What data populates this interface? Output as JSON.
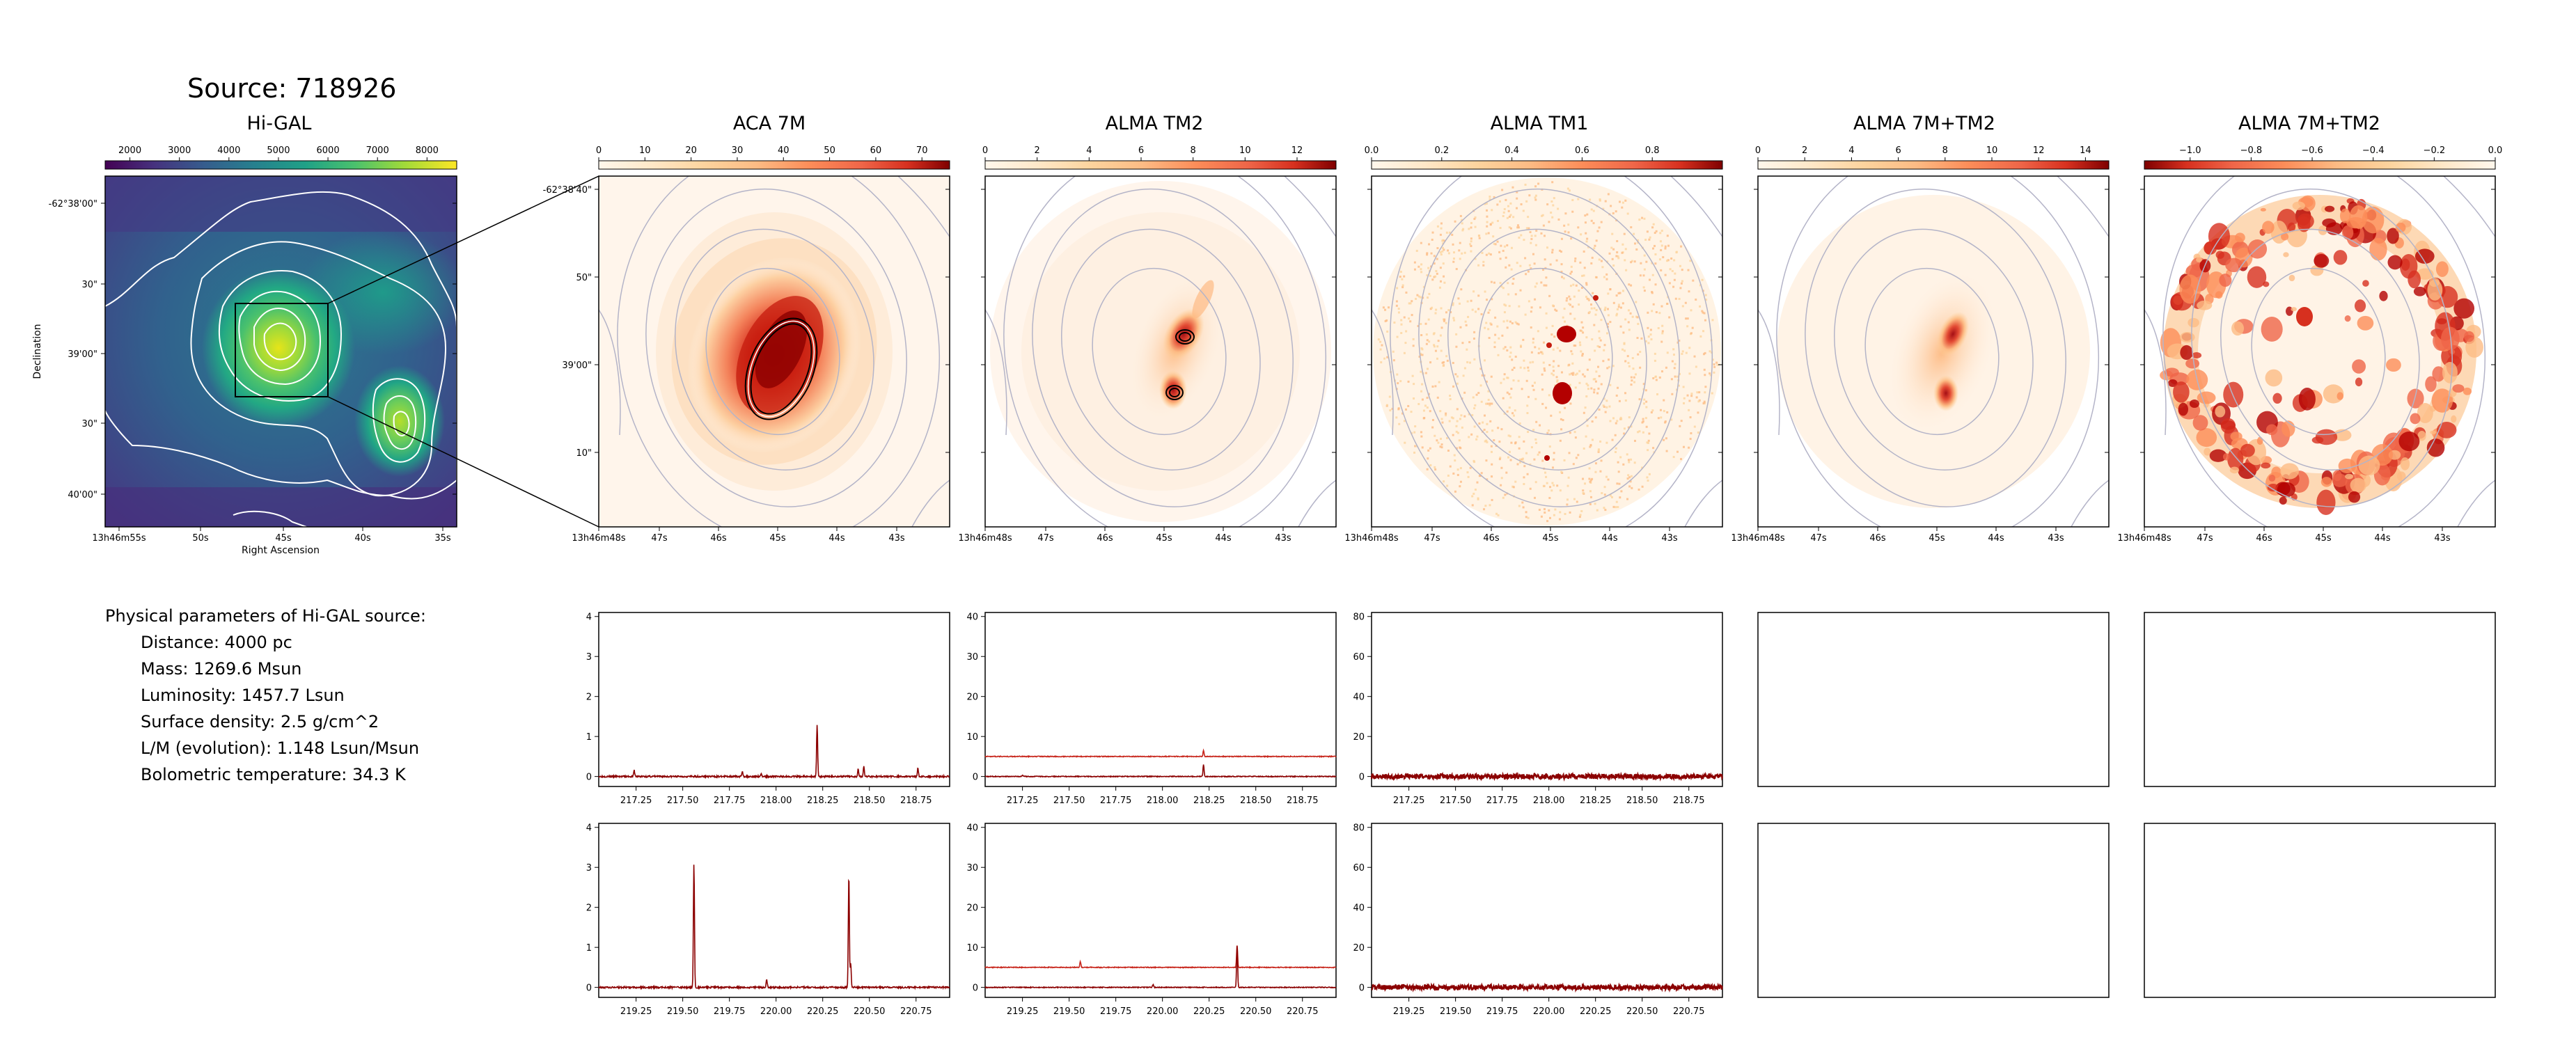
{
  "source_title": "Source: 718926",
  "physical": {
    "heading": "Physical parameters of Hi-GAL source:",
    "items": [
      "Distance: 4000 pc",
      "Mass: 1269.6 Msun",
      "Luminosity: 1457.7 Lsun",
      "Surface density: 2.5 g/cm^2",
      "L/M (evolution): 1.148 Lsun/Msun",
      "Bolometric temperature: 34.3 K"
    ]
  },
  "higal": {
    "title": "Hi-GAL",
    "colormap": "viridis",
    "colorbar_ticks": [
      "2000",
      "3000",
      "4000",
      "5000",
      "6000",
      "7000",
      "8000"
    ],
    "colorbar_range": [
      1500,
      8600
    ],
    "dec_ticks": [
      "-62°38'00\"",
      "30\"",
      "39'00\"",
      "30\"",
      "40'00\""
    ],
    "ra_ticks": [
      "13h46m55s",
      "50s",
      "45s",
      "40s",
      "35s"
    ],
    "xlabel": "Right Ascension",
    "ylabel": "Declination",
    "contour_color": "#ffffff"
  },
  "zoom_panels": [
    {
      "id": "aca7m",
      "title": "ACA 7M",
      "colorbar_ticks": [
        "0",
        "10",
        "20",
        "30",
        "40",
        "50",
        "60",
        "70"
      ],
      "colorbar_range": [
        0,
        76
      ],
      "colormap": "OrRd"
    },
    {
      "id": "tm2",
      "title": "ALMA TM2",
      "colorbar_ticks": [
        "0",
        "2",
        "4",
        "6",
        "8",
        "10",
        "12"
      ],
      "colorbar_range": [
        0,
        13.5
      ],
      "colormap": "OrRd"
    },
    {
      "id": "tm1",
      "title": "ALMA TM1",
      "colorbar_ticks": [
        "0.0",
        "0.2",
        "0.4",
        "0.6",
        "0.8"
      ],
      "colorbar_range": [
        0,
        1.0
      ],
      "colormap": "OrRd"
    },
    {
      "id": "7mtm2",
      "title": "ALMA 7M+TM2",
      "colorbar_ticks": [
        "0",
        "2",
        "4",
        "6",
        "8",
        "10",
        "12",
        "14"
      ],
      "colorbar_range": [
        0,
        15
      ],
      "colormap": "OrRd"
    },
    {
      "id": "7mtm2b",
      "title": "ALMA 7M+TM2",
      "colorbar_ticks": [
        "−1.0",
        "−0.8",
        "−0.6",
        "−0.4",
        "−0.2",
        "0.0"
      ],
      "colorbar_range": [
        -1.15,
        0
      ],
      "colormap": "OrRd_r"
    }
  ],
  "zoom_axes": {
    "dec_ticks": [
      "-62°38'40\"",
      "50\"",
      "39'00\"",
      "10\""
    ],
    "ra_ticks": [
      "13h46m48s",
      "47s",
      "46s",
      "45s",
      "44s",
      "43s"
    ],
    "contour_color": "#b4b4c8"
  },
  "chart_data": [
    {
      "type": "line",
      "panel": "spectrum-aca7m-row1",
      "xlim": [
        217.05,
        218.93
      ],
      "ylim": [
        -0.25,
        4.1
      ],
      "x_ticks": [
        "217.25",
        "217.50",
        "217.75",
        "218.00",
        "218.25",
        "218.50",
        "218.75"
      ],
      "y_ticks": [
        "0",
        "1",
        "2",
        "3",
        "4"
      ],
      "series": [
        {
          "baseline": 0,
          "noise": 0.02,
          "peaks": [
            [
              217.24,
              0.15
            ],
            [
              217.82,
              0.12
            ],
            [
              217.92,
              0.08
            ],
            [
              218.22,
              1.3
            ],
            [
              218.44,
              0.2
            ],
            [
              218.47,
              0.25
            ],
            [
              218.76,
              0.22
            ]
          ]
        }
      ]
    },
    {
      "type": "line",
      "panel": "spectrum-tm2-row1",
      "xlim": [
        217.05,
        218.93
      ],
      "ylim": [
        -2.5,
        41
      ],
      "x_ticks": [
        "217.25",
        "217.50",
        "217.75",
        "218.00",
        "218.25",
        "218.50",
        "218.75"
      ],
      "y_ticks": [
        "0",
        "10",
        "20",
        "30",
        "40"
      ],
      "series": [
        {
          "baseline": 5,
          "noise": 0.1,
          "peaks": [
            [
              218.22,
              1.5
            ]
          ]
        },
        {
          "baseline": 0,
          "noise": 0.1,
          "peaks": [
            [
              217.25,
              0.3
            ],
            [
              218.22,
              3
            ]
          ]
        }
      ]
    },
    {
      "type": "line",
      "panel": "spectrum-tm1-row1",
      "xlim": [
        217.05,
        218.93
      ],
      "ylim": [
        -5,
        82
      ],
      "x_ticks": [
        "217.25",
        "217.50",
        "217.75",
        "218.00",
        "218.25",
        "218.50",
        "218.75"
      ],
      "y_ticks": [
        "0",
        "20",
        "40",
        "60",
        "80"
      ],
      "series": [
        {
          "baseline": 0,
          "noise": 1.2,
          "peaks": []
        }
      ]
    },
    {
      "type": "line",
      "panel": "spectrum-aca7m-row2",
      "xlim": [
        219.05,
        220.93
      ],
      "ylim": [
        -0.25,
        4.1
      ],
      "x_ticks": [
        "219.25",
        "219.50",
        "219.75",
        "220.00",
        "220.25",
        "220.50",
        "220.75"
      ],
      "y_ticks": [
        "0",
        "1",
        "2",
        "3",
        "4"
      ],
      "series": [
        {
          "baseline": 0,
          "noise": 0.02,
          "peaks": [
            [
              219.56,
              3.1
            ],
            [
              219.95,
              0.2
            ],
            [
              220.39,
              2.85
            ],
            [
              220.4,
              0.6
            ]
          ]
        }
      ]
    },
    {
      "type": "line",
      "panel": "spectrum-tm2-row2",
      "xlim": [
        219.05,
        220.93
      ],
      "ylim": [
        -2.5,
        41
      ],
      "x_ticks": [
        "219.25",
        "219.50",
        "219.75",
        "220.00",
        "220.25",
        "220.50",
        "220.75"
      ],
      "y_ticks": [
        "0",
        "10",
        "20",
        "30",
        "40"
      ],
      "series": [
        {
          "baseline": 5,
          "noise": 0.1,
          "peaks": [
            [
              219.56,
              1.5
            ],
            [
              220.4,
              5.5
            ]
          ]
        },
        {
          "baseline": 0,
          "noise": 0.1,
          "peaks": [
            [
              219.95,
              0.8
            ],
            [
              220.4,
              10.5
            ]
          ]
        }
      ]
    },
    {
      "type": "line",
      "panel": "spectrum-tm1-row2",
      "xlim": [
        219.05,
        220.93
      ],
      "ylim": [
        -5,
        82
      ],
      "x_ticks": [
        "219.25",
        "219.50",
        "219.75",
        "220.00",
        "220.25",
        "220.50",
        "220.75"
      ],
      "y_ticks": [
        "0",
        "20",
        "40",
        "60",
        "80"
      ],
      "series": [
        {
          "baseline": 0,
          "noise": 1.2,
          "peaks": []
        }
      ]
    },
    {
      "type": "line",
      "panel": "spectrum-empty-1",
      "series": []
    },
    {
      "type": "line",
      "panel": "spectrum-empty-2",
      "series": []
    },
    {
      "type": "line",
      "panel": "spectrum-empty-3",
      "series": []
    },
    {
      "type": "line",
      "panel": "spectrum-empty-4",
      "series": []
    }
  ]
}
